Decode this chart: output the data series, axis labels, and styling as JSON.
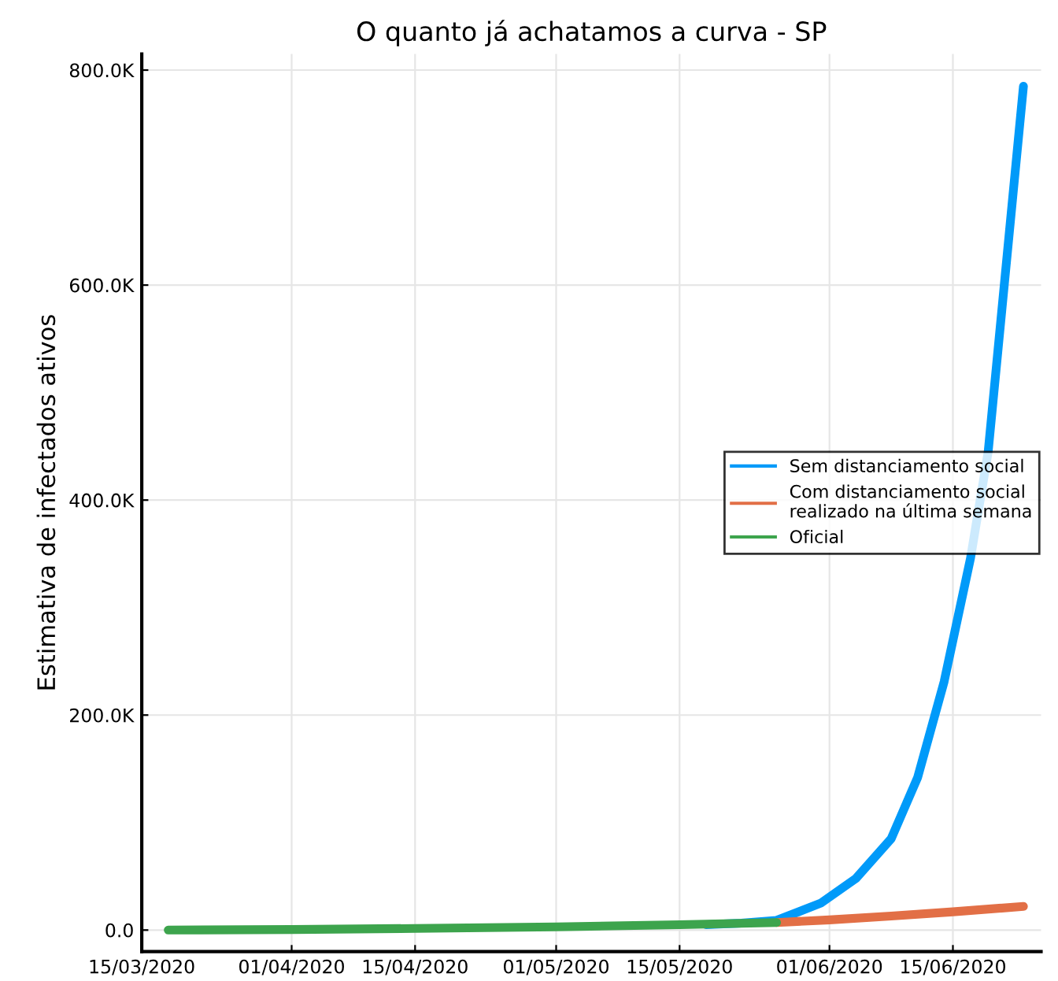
{
  "chart_data": {
    "type": "line",
    "title": "O quanto já achatamos a curva - SP",
    "ylabel": "Estimativa de infectados ativos",
    "series": [
      {
        "name": "Sem distanciamento social",
        "color": "#009af9",
        "x": [
          "2020-05-18",
          "2020-05-22",
          "2020-05-26",
          "2020-05-31",
          "2020-06-04",
          "2020-06-08",
          "2020-06-11",
          "2020-06-14",
          "2020-06-17",
          "2020-06-19",
          "2020-06-23"
        ],
        "values": [
          5000,
          6500,
          9000,
          25000,
          48000,
          85000,
          142000,
          231000,
          346000,
          445000,
          785000
        ]
      },
      {
        "name": "Com distanciamento social\nrealizado na última semana",
        "color": "#e26f46",
        "x": [
          "2020-05-26",
          "2020-06-01",
          "2020-06-08",
          "2020-06-15",
          "2020-06-23"
        ],
        "values": [
          7000,
          9500,
          13000,
          17000,
          22000
        ]
      },
      {
        "name": "Oficial",
        "color": "#3da44d",
        "x": [
          "2020-03-18",
          "2020-04-01",
          "2020-04-15",
          "2020-05-01",
          "2020-05-15",
          "2020-05-26"
        ],
        "values": [
          0,
          500,
          1500,
          3000,
          5000,
          7000
        ]
      }
    ],
    "xlim": [
      "2020-03-15",
      "2020-06-25"
    ],
    "xticks": [
      {
        "value": "2020-03-15",
        "label": "15/03/2020"
      },
      {
        "value": "2020-04-01",
        "label": "01/04/2020"
      },
      {
        "value": "2020-04-15",
        "label": "15/04/2020"
      },
      {
        "value": "2020-05-01",
        "label": "01/05/2020"
      },
      {
        "value": "2020-05-15",
        "label": "15/05/2020"
      },
      {
        "value": "2020-06-01",
        "label": "01/06/2020"
      },
      {
        "value": "2020-06-15",
        "label": "15/06/2020"
      }
    ],
    "ylim": [
      -20000,
      815000
    ],
    "yticks": [
      {
        "value": 0,
        "label": "0.0"
      },
      {
        "value": 200000,
        "label": "200.0K"
      },
      {
        "value": 400000,
        "label": "400.0K"
      },
      {
        "value": 600000,
        "label": "600.0K"
      },
      {
        "value": 800000,
        "label": "800.0K"
      }
    ],
    "grid": true,
    "legend": "center right",
    "marker": "none",
    "line_style": "solid"
  }
}
